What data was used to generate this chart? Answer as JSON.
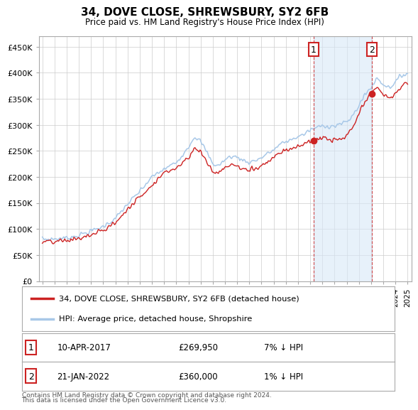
{
  "title": "34, DOVE CLOSE, SHREWSBURY, SY2 6FB",
  "subtitle": "Price paid vs. HM Land Registry's House Price Index (HPI)",
  "ylim": [
    0,
    470000
  ],
  "yticks": [
    0,
    50000,
    100000,
    150000,
    200000,
    250000,
    300000,
    350000,
    400000,
    450000
  ],
  "ytick_labels": [
    "£0",
    "£50K",
    "£100K",
    "£150K",
    "£200K",
    "£250K",
    "£300K",
    "£350K",
    "£400K",
    "£450K"
  ],
  "hpi_color": "#A8C8E8",
  "price_color": "#CC2222",
  "vline_color": "#CC2222",
  "shade_color": "#D8E8F8",
  "sale1_year_dec": 2017.274,
  "sale1_price": 269950,
  "sale1_label": "10-APR-2017",
  "sale1_pct": "7% ↓ HPI",
  "sale2_year_dec": 2022.054,
  "sale2_price": 360000,
  "sale2_label": "21-JAN-2022",
  "sale2_pct": "1% ↓ HPI",
  "legend_line1": "34, DOVE CLOSE, SHREWSBURY, SY2 6FB (detached house)",
  "legend_line2": "HPI: Average price, detached house, Shropshire",
  "footer": "Contains HM Land Registry data © Crown copyright and database right 2024.\nThis data is licensed under the Open Government Licence v3.0.",
  "bg_color": "#FFFFFF",
  "grid_color": "#CCCCCC",
  "annotation_box_color": "#CC2222",
  "hpi_anchors_t": [
    1995.0,
    1996.0,
    1997.0,
    1998.0,
    1999.0,
    2000.0,
    2001.0,
    2002.0,
    2003.0,
    2004.0,
    2005.0,
    2006.0,
    2007.0,
    2007.5,
    2008.0,
    2008.5,
    2009.0,
    2009.5,
    2010.0,
    2010.5,
    2011.0,
    2011.5,
    2012.0,
    2012.5,
    2013.0,
    2013.5,
    2014.0,
    2014.5,
    2015.0,
    2015.5,
    2016.0,
    2016.5,
    2017.0,
    2017.5,
    2018.0,
    2018.5,
    2019.0,
    2019.5,
    2020.0,
    2020.5,
    2021.0,
    2021.5,
    2022.0,
    2022.5,
    2023.0,
    2023.5,
    2024.0,
    2024.5,
    2025.0
  ],
  "hpi_anchors_v": [
    80000,
    81000,
    83000,
    88000,
    96000,
    105000,
    120000,
    148000,
    172000,
    200000,
    215000,
    228000,
    258000,
    278000,
    268000,
    248000,
    225000,
    222000,
    233000,
    240000,
    238000,
    232000,
    228000,
    232000,
    237000,
    245000,
    252000,
    262000,
    268000,
    272000,
    278000,
    282000,
    290000,
    295000,
    298000,
    298000,
    298000,
    302000,
    305000,
    318000,
    338000,
    358000,
    372000,
    390000,
    378000,
    372000,
    382000,
    395000,
    400000
  ],
  "price_anchors_t": [
    1995.0,
    1996.0,
    1997.0,
    1998.0,
    1999.0,
    2000.0,
    2001.0,
    2002.0,
    2003.0,
    2004.0,
    2005.0,
    2006.0,
    2007.0,
    2007.5,
    2008.0,
    2008.5,
    2009.0,
    2009.5,
    2010.0,
    2010.5,
    2011.0,
    2011.5,
    2012.0,
    2012.5,
    2013.0,
    2013.5,
    2014.0,
    2014.5,
    2015.0,
    2015.5,
    2016.0,
    2016.5,
    2017.0,
    2017.274,
    2017.5,
    2018.0,
    2018.5,
    2019.0,
    2019.5,
    2020.0,
    2020.5,
    2021.0,
    2021.5,
    2022.054,
    2022.5,
    2023.0,
    2023.5,
    2024.0,
    2024.5,
    2025.0
  ],
  "price_anchors_v": [
    75000,
    75000,
    78000,
    82000,
    88000,
    98000,
    112000,
    138000,
    162000,
    185000,
    208000,
    218000,
    238000,
    255000,
    248000,
    230000,
    210000,
    208000,
    218000,
    225000,
    220000,
    215000,
    212000,
    218000,
    222000,
    230000,
    238000,
    248000,
    252000,
    255000,
    260000,
    262000,
    268000,
    269950,
    272000,
    275000,
    272000,
    270000,
    272000,
    278000,
    295000,
    320000,
    345000,
    360000,
    375000,
    358000,
    350000,
    360000,
    375000,
    380000
  ]
}
